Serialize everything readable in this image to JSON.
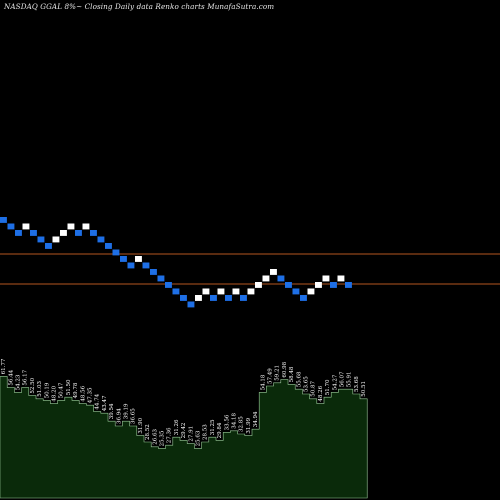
{
  "header": {
    "title": "NASDAQ GGAL  8%~  Closing Daily data  Renko  charts MunafaSutra.com"
  },
  "colors": {
    "background": "#000000",
    "up_brick": "#ffffff",
    "down_brick": "#1e6fe6",
    "level_line": "#b5561f",
    "volume_fill": "#0a2a0a",
    "volume_stroke": "#9acd9a"
  },
  "chart_data": [
    {
      "type": "renko",
      "title": "NASDAQ GGAL  8%~  Closing Daily data  Renko  charts MunafaSutra.com",
      "bricks": [
        {
          "d": "down",
          "level": 26
        },
        {
          "d": "down",
          "level": 25
        },
        {
          "d": "down",
          "level": 24
        },
        {
          "d": "up",
          "level": 25
        },
        {
          "d": "down",
          "level": 24
        },
        {
          "d": "down",
          "level": 23
        },
        {
          "d": "down",
          "level": 22
        },
        {
          "d": "up",
          "level": 23
        },
        {
          "d": "up",
          "level": 24
        },
        {
          "d": "up",
          "level": 25
        },
        {
          "d": "down",
          "level": 24
        },
        {
          "d": "up",
          "level": 25
        },
        {
          "d": "down",
          "level": 24
        },
        {
          "d": "down",
          "level": 23
        },
        {
          "d": "down",
          "level": 22
        },
        {
          "d": "down",
          "level": 21
        },
        {
          "d": "down",
          "level": 20
        },
        {
          "d": "down",
          "level": 19
        },
        {
          "d": "up",
          "level": 20
        },
        {
          "d": "down",
          "level": 19
        },
        {
          "d": "down",
          "level": 18
        },
        {
          "d": "down",
          "level": 17
        },
        {
          "d": "down",
          "level": 16
        },
        {
          "d": "down",
          "level": 15
        },
        {
          "d": "down",
          "level": 14
        },
        {
          "d": "down",
          "level": 13
        },
        {
          "d": "up",
          "level": 14
        },
        {
          "d": "up",
          "level": 15
        },
        {
          "d": "down",
          "level": 14
        },
        {
          "d": "up",
          "level": 15
        },
        {
          "d": "down",
          "level": 14
        },
        {
          "d": "up",
          "level": 15
        },
        {
          "d": "down",
          "level": 14
        },
        {
          "d": "up",
          "level": 15
        },
        {
          "d": "up",
          "level": 16
        },
        {
          "d": "up",
          "level": 17
        },
        {
          "d": "up",
          "level": 18
        },
        {
          "d": "down",
          "level": 17
        },
        {
          "d": "down",
          "level": 16
        },
        {
          "d": "down",
          "level": 15
        },
        {
          "d": "down",
          "level": 14
        },
        {
          "d": "up",
          "level": 15
        },
        {
          "d": "up",
          "level": 16
        },
        {
          "d": "up",
          "level": 17
        },
        {
          "d": "down",
          "level": 16
        },
        {
          "d": "up",
          "level": 17
        },
        {
          "d": "down",
          "level": 16
        }
      ],
      "level_lines": [
        254,
        284
      ],
      "volume": {
        "series": [
          {
            "label": "61.77",
            "v": 0.76
          },
          {
            "label": "56.44",
            "v": 0.69
          },
          {
            "label": "54.23",
            "v": 0.66
          },
          {
            "label": "56.17",
            "v": 0.69
          },
          {
            "label": "52.50",
            "v": 0.64
          },
          {
            "label": "51.03",
            "v": 0.62
          },
          {
            "label": "50.19",
            "v": 0.61
          },
          {
            "label": "48.20",
            "v": 0.59
          },
          {
            "label": "50.47",
            "v": 0.61
          },
          {
            "label": "51.50",
            "v": 0.63
          },
          {
            "label": "49.78",
            "v": 0.61
          },
          {
            "label": "48.56",
            "v": 0.59
          },
          {
            "label": "47.35",
            "v": 0.58
          },
          {
            "label": "44.74",
            "v": 0.54
          },
          {
            "label": "43.47",
            "v": 0.53
          },
          {
            "label": "39.54",
            "v": 0.48
          },
          {
            "label": "36.94",
            "v": 0.45
          },
          {
            "label": "39.19",
            "v": 0.48
          },
          {
            "label": "36.65",
            "v": 0.45
          },
          {
            "label": "31.90",
            "v": 0.39
          },
          {
            "label": "28.52",
            "v": 0.35
          },
          {
            "label": "26.63",
            "v": 0.32
          },
          {
            "label": "25.35",
            "v": 0.31
          },
          {
            "label": "27.36",
            "v": 0.33
          },
          {
            "label": "31.26",
            "v": 0.38
          },
          {
            "label": "29.42",
            "v": 0.36
          },
          {
            "label": "27.91",
            "v": 0.34
          },
          {
            "label": "25.63",
            "v": 0.31
          },
          {
            "label": "28.53",
            "v": 0.35
          },
          {
            "label": "31.25",
            "v": 0.38
          },
          {
            "label": "29.84",
            "v": 0.36
          },
          {
            "label": "33.56",
            "v": 0.41
          },
          {
            "label": "34.18",
            "v": 0.42
          },
          {
            "label": "32.85",
            "v": 0.4
          },
          {
            "label": "31.99",
            "v": 0.39
          },
          {
            "label": "34.94",
            "v": 0.43
          },
          {
            "label": "54.18",
            "v": 0.66
          },
          {
            "label": "57.49",
            "v": 0.7
          },
          {
            "label": "59.21",
            "v": 0.72
          },
          {
            "label": "60.98",
            "v": 0.74
          },
          {
            "label": "58.48",
            "v": 0.71
          },
          {
            "label": "55.68",
            "v": 0.68
          },
          {
            "label": "53.65",
            "v": 0.65
          },
          {
            "label": "50.87",
            "v": 0.62
          },
          {
            "label": "48.26",
            "v": 0.59
          },
          {
            "label": "51.70",
            "v": 0.63
          },
          {
            "label": "54.27",
            "v": 0.66
          },
          {
            "label": "56.07",
            "v": 0.68
          },
          {
            "label": "55.91",
            "v": 0.68
          },
          {
            "label": "53.68",
            "v": 0.65
          },
          {
            "label": "50.51",
            "v": 0.62
          }
        ]
      }
    }
  ]
}
